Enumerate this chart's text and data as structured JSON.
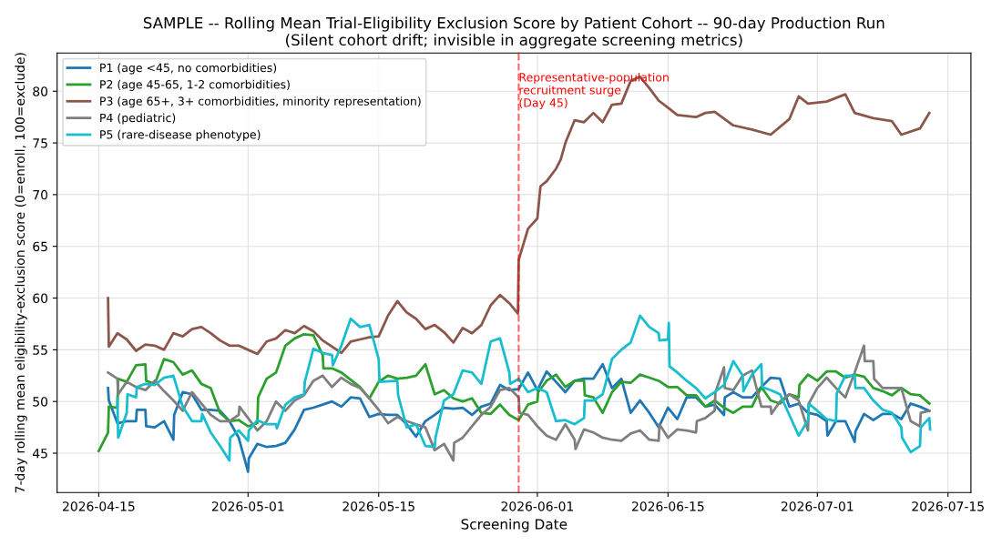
{
  "chart_data": {
    "type": "line",
    "title": "SAMPLE -- Rolling Mean Trial-Eligibility Exclusion Score by Patient Cohort -- 90-day Production Run",
    "subtitle": "(Silent cohort drift; invisible in aggregate screening metrics)",
    "xlabel": "Screening Date",
    "ylabel": "7-day rolling mean eligibility-exclusion score (0=enroll, 100=exclude)",
    "xlim": [
      "2026-04-10T13:00",
      "2026-07-17T11:00"
    ],
    "xticks": [
      "2026-04-15",
      "2026-05-01",
      "2026-05-15",
      "2026-06-01",
      "2026-06-15",
      "2026-07-01",
      "2026-07-15"
    ],
    "ylim": [
      41.2,
      83.7
    ],
    "yticks": [
      45,
      50,
      55,
      60,
      65,
      70,
      75,
      80
    ],
    "grid": true,
    "legend": "top left",
    "marker": "none",
    "line_style": "solid",
    "ref_lines": [
      {
        "axis": "x",
        "value": "2026-05-30",
        "label": "Representative-population\nrecruitment surge\n(Day 45)",
        "color": "#ff0000",
        "line_style": "dashed"
      }
    ],
    "series": [
      {
        "name": "P1 (age <45, no comorbidities)",
        "color": "#1f77b4",
        "x": [
          "2026-04-16",
          "2026-04-16T02:00",
          "2026-04-17",
          "2026-04-18",
          "2026-04-19",
          "2026-04-19T02:00",
          "2026-04-20",
          "2026-04-20T02:00",
          "2026-04-21",
          "2026-04-22",
          "2026-04-23",
          "2026-04-23T02:00",
          "2026-04-24",
          "2026-04-25",
          "2026-04-26",
          "2026-04-27",
          "2026-04-28",
          "2026-04-29",
          "2026-04-30",
          "2026-05-01",
          "2026-05-01T02:00",
          "2026-05-02",
          "2026-05-03",
          "2026-05-04",
          "2026-05-05",
          "2026-05-06",
          "2026-05-07",
          "2026-05-08",
          "2026-05-09",
          "2026-05-10",
          "2026-05-11",
          "2026-05-12",
          "2026-05-13",
          "2026-05-14",
          "2026-05-15",
          "2026-05-16",
          "2026-05-17",
          "2026-05-18",
          "2026-05-19",
          "2026-05-20",
          "2026-05-21",
          "2026-05-22",
          "2026-05-23",
          "2026-05-24",
          "2026-05-25",
          "2026-05-26",
          "2026-05-27",
          "2026-05-28",
          "2026-05-29",
          "2026-05-30",
          "2026-05-31",
          "2026-06-01",
          "2026-06-02",
          "2026-06-03",
          "2026-06-04",
          "2026-06-05",
          "2026-06-06",
          "2026-06-07",
          "2026-06-08",
          "2026-06-09",
          "2026-06-10",
          "2026-06-11",
          "2026-06-12",
          "2026-06-13",
          "2026-06-14",
          "2026-06-15",
          "2026-06-16",
          "2026-06-17",
          "2026-06-18",
          "2026-06-19",
          "2026-06-20",
          "2026-06-21",
          "2026-06-21T02:00",
          "2026-06-22",
          "2026-06-23",
          "2026-06-24",
          "2026-06-25",
          "2026-06-26",
          "2026-06-27",
          "2026-06-28",
          "2026-06-29",
          "2026-06-30",
          "2026-07-01",
          "2026-07-02",
          "2026-07-02T02:00",
          "2026-07-03",
          "2026-07-04",
          "2026-07-05",
          "2026-07-05T02:00",
          "2026-07-06",
          "2026-07-07",
          "2026-07-08",
          "2026-07-09",
          "2026-07-10",
          "2026-07-11",
          "2026-07-12",
          "2026-07-13"
        ],
        "values": [
          51.3,
          50.1,
          47.9,
          48.1,
          48.1,
          49.2,
          49.2,
          47.6,
          47.5,
          48.1,
          46.3,
          48.7,
          50.9,
          50.7,
          49.2,
          49.2,
          49.1,
          48.1,
          46.5,
          43.2,
          44.5,
          45.9,
          45.6,
          45.7,
          46.0,
          47.3,
          49.2,
          49.4,
          49.7,
          50.0,
          49.5,
          50.4,
          50.3,
          48.5,
          48.8,
          48.7,
          48.7,
          47.8,
          46.6,
          48.1,
          48.7,
          49.4,
          49.3,
          49.4,
          48.7,
          49.5,
          49.8,
          51.6,
          51.1,
          51.2,
          52.8,
          51.1,
          52.9,
          51.9,
          50.9,
          52.0,
          52.2,
          52.2,
          53.6,
          51.3,
          52.2,
          48.9,
          50.1,
          48.9,
          47.5,
          49.4,
          48.3,
          50.4,
          50.4,
          49.5,
          49.7,
          48.7,
          50.4,
          50.9,
          50.4,
          50.4,
          51.4,
          52.3,
          52.2,
          49.5,
          49.8,
          48.9,
          48.7,
          48.1,
          46.7,
          48.1,
          48.1,
          46.1,
          47.1,
          48.8,
          48.2,
          48.8,
          48.8,
          48.3,
          49.8,
          49.5,
          49.1
        ]
      },
      {
        "name": "P2 (age 45-65, 1-2 comorbidities)",
        "color": "#2ca02c",
        "x": [
          "2026-04-15",
          "2026-04-16",
          "2026-04-16T02:00",
          "2026-04-17",
          "2026-04-17T02:00",
          "2026-04-18",
          "2026-04-19",
          "2026-04-20",
          "2026-04-20T02:00",
          "2026-04-21",
          "2026-04-22",
          "2026-04-23",
          "2026-04-24",
          "2026-04-25",
          "2026-04-26",
          "2026-04-27",
          "2026-04-28",
          "2026-04-29",
          "2026-04-30",
          "2026-05-01",
          "2026-05-02",
          "2026-05-02T02:00",
          "2026-05-03",
          "2026-05-04",
          "2026-05-05",
          "2026-05-06",
          "2026-05-07",
          "2026-05-08",
          "2026-05-09",
          "2026-05-09T02:00",
          "2026-05-10",
          "2026-05-11",
          "2026-05-13",
          "2026-05-14",
          "2026-05-15",
          "2026-05-16",
          "2026-05-17",
          "2026-05-18",
          "2026-05-19",
          "2026-05-20",
          "2026-05-21",
          "2026-05-22",
          "2026-05-23",
          "2026-05-24",
          "2026-05-25",
          "2026-05-26",
          "2026-05-27",
          "2026-05-28",
          "2026-05-29",
          "2026-05-30",
          "2026-05-31",
          "2026-06-01",
          "2026-06-01T02:00",
          "2026-06-02",
          "2026-06-03",
          "2026-06-04",
          "2026-06-05",
          "2026-06-06",
          "2026-06-06T02:00",
          "2026-06-07",
          "2026-06-08",
          "2026-06-09",
          "2026-06-10",
          "2026-06-11",
          "2026-06-12",
          "2026-06-13",
          "2026-06-14",
          "2026-06-15",
          "2026-06-16",
          "2026-06-17",
          "2026-06-18",
          "2026-06-19",
          "2026-06-20",
          "2026-06-21",
          "2026-06-22",
          "2026-06-23",
          "2026-06-24",
          "2026-06-25",
          "2026-06-26",
          "2026-06-27",
          "2026-06-28",
          "2026-06-29",
          "2026-06-29T02:00",
          "2026-06-30",
          "2026-07-01",
          "2026-07-02",
          "2026-07-03",
          "2026-07-04",
          "2026-07-05",
          "2026-07-06",
          "2026-07-07",
          "2026-07-08",
          "2026-07-09",
          "2026-07-10",
          "2026-07-11",
          "2026-07-12",
          "2026-07-13"
        ],
        "values": [
          45.2,
          47.0,
          49.5,
          49.4,
          52.2,
          51.9,
          53.5,
          53.6,
          52.0,
          51.7,
          54.1,
          53.8,
          52.6,
          53.0,
          51.7,
          51.3,
          48.9,
          48.1,
          48.2,
          47.6,
          47.9,
          50.4,
          52.2,
          52.8,
          55.4,
          56.1,
          56.5,
          56.4,
          54.5,
          53.2,
          53.2,
          52.8,
          51.4,
          50.3,
          51.9,
          52.5,
          52.2,
          52.3,
          52.5,
          53.6,
          50.7,
          51.1,
          50.3,
          50.0,
          50.3,
          48.9,
          48.8,
          49.7,
          48.7,
          48.2,
          49.7,
          50.0,
          50.9,
          52.0,
          52.6,
          51.4,
          52.0,
          52.0,
          50.6,
          50.4,
          48.9,
          50.9,
          51.9,
          51.8,
          52.6,
          52.3,
          52.0,
          51.4,
          51.4,
          50.6,
          50.6,
          49.5,
          50.1,
          49.4,
          48.9,
          49.5,
          49.5,
          51.4,
          50.1,
          49.8,
          50.7,
          50.4,
          51.6,
          52.6,
          52.0,
          52.9,
          52.9,
          52.3,
          52.6,
          52.4,
          51.3,
          51.0,
          50.6,
          51.3,
          50.7,
          50.6,
          49.8
        ]
      },
      {
        "name": "P3 (age 65+, 3+ comorbidities, minority representation)",
        "color": "#8c564b",
        "x": [
          "2026-04-16",
          "2026-04-16T02:00",
          "2026-04-17",
          "2026-04-18",
          "2026-04-19",
          "2026-04-20",
          "2026-04-21",
          "2026-04-22",
          "2026-04-23",
          "2026-04-24",
          "2026-04-25",
          "2026-04-26",
          "2026-04-27",
          "2026-04-28",
          "2026-04-29",
          "2026-04-30",
          "2026-05-01",
          "2026-05-02",
          "2026-05-03",
          "2026-05-04",
          "2026-05-05",
          "2026-05-06",
          "2026-05-07",
          "2026-05-08",
          "2026-05-09",
          "2026-05-10",
          "2026-05-11",
          "2026-05-12",
          "2026-05-13",
          "2026-05-14",
          "2026-05-15",
          "2026-05-16",
          "2026-05-17",
          "2026-05-18",
          "2026-05-19",
          "2026-05-20",
          "2026-05-21",
          "2026-05-22",
          "2026-05-23",
          "2026-05-24",
          "2026-05-25",
          "2026-05-26",
          "2026-05-27",
          "2026-05-28",
          "2026-05-29",
          "2026-05-29T22:00",
          "2026-05-30",
          "2026-05-31",
          "2026-06-01",
          "2026-06-01T08:00",
          "2026-06-02",
          "2026-06-03",
          "2026-06-03T12:00",
          "2026-06-04",
          "2026-06-05",
          "2026-06-06",
          "2026-06-07",
          "2026-06-08",
          "2026-06-09",
          "2026-06-10",
          "2026-06-11",
          "2026-06-12",
          "2026-06-13",
          "2026-06-14",
          "2026-06-15",
          "2026-06-16",
          "2026-06-18",
          "2026-06-19",
          "2026-06-20",
          "2026-06-22",
          "2026-06-24",
          "2026-06-26",
          "2026-06-28",
          "2026-06-29",
          "2026-06-30",
          "2026-07-02",
          "2026-07-04",
          "2026-07-05",
          "2026-07-07",
          "2026-07-09",
          "2026-07-10",
          "2026-07-12",
          "2026-07-13"
        ],
        "values": [
          60.0,
          55.3,
          56.6,
          56.0,
          54.9,
          55.5,
          55.4,
          55.0,
          56.6,
          56.3,
          57.0,
          57.2,
          56.6,
          55.9,
          55.4,
          55.4,
          55.0,
          54.6,
          55.8,
          56.1,
          56.9,
          56.6,
          57.3,
          56.8,
          55.9,
          55.3,
          54.7,
          55.8,
          56.0,
          56.2,
          56.3,
          58.3,
          59.7,
          58.6,
          58.0,
          57.0,
          57.4,
          56.7,
          55.7,
          57.1,
          56.6,
          57.4,
          59.3,
          60.3,
          59.5,
          58.5,
          63.7,
          66.7,
          67.7,
          70.8,
          71.3,
          72.5,
          73.4,
          75.0,
          77.2,
          77.0,
          77.9,
          77.0,
          78.7,
          78.8,
          81.0,
          81.4,
          80.3,
          79.1,
          78.4,
          77.7,
          77.5,
          77.9,
          78.0,
          76.7,
          76.3,
          75.8,
          77.3,
          79.5,
          78.8,
          79.0,
          79.7,
          77.9,
          77.4,
          77.1,
          75.8,
          76.4,
          77.9
        ]
      },
      {
        "name": "P4 (pediatric)",
        "color": "#7f7f7f",
        "x": [
          "2026-04-16",
          "2026-04-17",
          "2026-04-17T02:00",
          "2026-04-18",
          "2026-04-19",
          "2026-04-20",
          "2026-04-21",
          "2026-04-22",
          "2026-04-23",
          "2026-04-24",
          "2026-04-25",
          "2026-04-26",
          "2026-04-27",
          "2026-04-28",
          "2026-04-29",
          "2026-04-30",
          "2026-04-30T02:00",
          "2026-05-01",
          "2026-05-02",
          "2026-05-03",
          "2026-05-04",
          "2026-05-05",
          "2026-05-06",
          "2026-05-07",
          "2026-05-08",
          "2026-05-09",
          "2026-05-10",
          "2026-05-11",
          "2026-05-12",
          "2026-05-13",
          "2026-05-14",
          "2026-05-15",
          "2026-05-16",
          "2026-05-17",
          "2026-05-18",
          "2026-05-19",
          "2026-05-20",
          "2026-05-21",
          "2026-05-22",
          "2026-05-23",
          "2026-05-23T02:00",
          "2026-05-24",
          "2026-05-25",
          "2026-05-26",
          "2026-05-27",
          "2026-05-28",
          "2026-05-29",
          "2026-05-30",
          "2026-05-30T02:00",
          "2026-05-31",
          "2026-06-01",
          "2026-06-02",
          "2026-06-03",
          "2026-06-04",
          "2026-06-05",
          "2026-06-05T02:00",
          "2026-06-06",
          "2026-06-07",
          "2026-06-08",
          "2026-06-09",
          "2026-06-10",
          "2026-06-11",
          "2026-06-12",
          "2026-06-13",
          "2026-06-14",
          "2026-06-14T02:00",
          "2026-06-15",
          "2026-06-16",
          "2026-06-17",
          "2026-06-18",
          "2026-06-18T02:00",
          "2026-06-19",
          "2026-06-20",
          "2026-06-20T02:00",
          "2026-06-21",
          "2026-06-21T02:00",
          "2026-06-22",
          "2026-06-23",
          "2026-06-24",
          "2026-06-25",
          "2026-06-26",
          "2026-06-26T02:00",
          "2026-06-27",
          "2026-06-28",
          "2026-06-29",
          "2026-06-30",
          "2026-06-30T02:00",
          "2026-07-01",
          "2026-07-02",
          "2026-07-03",
          "2026-07-04",
          "2026-07-05",
          "2026-07-06",
          "2026-07-06T02:00",
          "2026-07-07",
          "2026-07-07T02:00",
          "2026-07-08",
          "2026-07-09",
          "2026-07-10",
          "2026-07-11",
          "2026-07-12",
          "2026-07-12T02:00",
          "2026-07-13"
        ],
        "values": [
          52.8,
          52.2,
          50.7,
          51.9,
          51.4,
          51.1,
          52.0,
          51.0,
          50.1,
          49.1,
          50.9,
          49.8,
          48.7,
          48.1,
          48.1,
          48.7,
          49.5,
          48.4,
          47.2,
          48.1,
          50.0,
          49.1,
          50.1,
          50.6,
          52.0,
          52.5,
          51.4,
          52.3,
          51.7,
          51.3,
          50.3,
          49.2,
          47.9,
          48.5,
          48.1,
          47.8,
          47.5,
          45.3,
          45.9,
          44.3,
          46.0,
          46.5,
          47.6,
          48.7,
          49.5,
          51.1,
          51.3,
          50.4,
          48.9,
          48.7,
          47.6,
          46.7,
          46.3,
          47.8,
          46.3,
          45.4,
          47.3,
          47.0,
          46.5,
          46.3,
          46.2,
          46.9,
          47.2,
          46.3,
          46.2,
          47.8,
          46.5,
          47.3,
          47.2,
          47.0,
          48.1,
          48.4,
          49.1,
          50.9,
          53.3,
          51.3,
          51.1,
          52.5,
          53.0,
          49.5,
          49.5,
          48.8,
          50.0,
          50.7,
          50.1,
          47.2,
          49.8,
          51.3,
          52.3,
          51.3,
          50.4,
          52.8,
          55.4,
          53.9,
          53.9,
          52.2,
          51.3,
          51.3,
          51.3,
          48.1,
          47.6,
          48.9,
          49.1
        ]
      },
      {
        "name": "P5 (rare-disease phenotype)",
        "color": "#17becf",
        "x": [
          "2026-04-17",
          "2026-04-17T02:00",
          "2026-04-18",
          "2026-04-18T02:00",
          "2026-04-19",
          "2026-04-19T02:00",
          "2026-04-20",
          "2026-04-21",
          "2026-04-22",
          "2026-04-23",
          "2026-04-24",
          "2026-04-25",
          "2026-04-26",
          "2026-04-26T02:00",
          "2026-04-27",
          "2026-04-28",
          "2026-04-29",
          "2026-04-29T02:00",
          "2026-04-30",
          "2026-05-01",
          "2026-05-01T02:00",
          "2026-05-02",
          "2026-05-03",
          "2026-05-04",
          "2026-05-04T02:00",
          "2026-05-05",
          "2026-05-06",
          "2026-05-07",
          "2026-05-07T02:00",
          "2026-05-08",
          "2026-05-09",
          "2026-05-10",
          "2026-05-10T02:00",
          "2026-05-11",
          "2026-05-12",
          "2026-05-13",
          "2026-05-14",
          "2026-05-15",
          "2026-05-15T02:00",
          "2026-05-17",
          "2026-05-17T02:00",
          "2026-05-18",
          "2026-05-19",
          "2026-05-20",
          "2026-05-21",
          "2026-05-21T02:00",
          "2026-05-22",
          "2026-05-23",
          "2026-05-24",
          "2026-05-25",
          "2026-05-26",
          "2026-05-27",
          "2026-05-28",
          "2026-05-29",
          "2026-05-29T02:00",
          "2026-05-30",
          "2026-05-31",
          "2026-06-01",
          "2026-06-02",
          "2026-06-03",
          "2026-06-04",
          "2026-06-05",
          "2026-06-06",
          "2026-06-06T02:00",
          "2026-06-07",
          "2026-06-08",
          "2026-06-09",
          "2026-06-10",
          "2026-06-11",
          "2026-06-12",
          "2026-06-13",
          "2026-06-14",
          "2026-06-14T02:00",
          "2026-06-15",
          "2026-06-15T02:00",
          "2026-06-15T04:00",
          "2026-06-16",
          "2026-06-17",
          "2026-06-18",
          "2026-06-19",
          "2026-06-20",
          "2026-06-21",
          "2026-06-22",
          "2026-06-23",
          "2026-06-23T02:00",
          "2026-06-24",
          "2026-06-25",
          "2026-06-25T02:00",
          "2026-06-26",
          "2026-06-27",
          "2026-06-28",
          "2026-06-29",
          "2026-06-30",
          "2026-06-30T02:00",
          "2026-07-01",
          "2026-07-02",
          "2026-07-03",
          "2026-07-03T02:00",
          "2026-07-04",
          "2026-07-05",
          "2026-07-05T02:00",
          "2026-07-06",
          "2026-07-07",
          "2026-07-08",
          "2026-07-09",
          "2026-07-10",
          "2026-07-10T02:00",
          "2026-07-11",
          "2026-07-12",
          "2026-07-12T02:00",
          "2026-07-13",
          "2026-07-13T02:00"
        ],
        "values": [
          50.3,
          46.5,
          48.9,
          50.7,
          50.4,
          51.4,
          51.7,
          51.6,
          52.3,
          52.5,
          49.5,
          48.1,
          48.1,
          48.8,
          47.0,
          45.7,
          44.3,
          46.5,
          47.2,
          46.2,
          47.2,
          48.2,
          47.8,
          47.8,
          47.4,
          49.7,
          50.4,
          50.7,
          51.9,
          55.1,
          54.7,
          54.5,
          53.5,
          55.4,
          58.0,
          57.2,
          57.4,
          54.1,
          51.9,
          52.0,
          50.6,
          47.5,
          47.8,
          45.7,
          45.6,
          46.5,
          50.1,
          50.7,
          53.0,
          52.8,
          51.7,
          55.8,
          56.1,
          52.8,
          51.7,
          52.2,
          50.9,
          51.3,
          50.9,
          48.1,
          48.2,
          47.8,
          48.4,
          50.1,
          50.1,
          50.7,
          54.1,
          55.0,
          55.7,
          58.3,
          57.2,
          56.6,
          55.9,
          56.0,
          57.6,
          53.4,
          52.8,
          52.0,
          51.3,
          50.3,
          50.9,
          51.6,
          53.9,
          52.5,
          51.0,
          52.6,
          53.6,
          51.4,
          51.1,
          50.7,
          48.7,
          46.7,
          48.2,
          49.8,
          49.1,
          48.3,
          48.1,
          50.8,
          52.5,
          52.5,
          51.3,
          51.3,
          50.1,
          49.2,
          48.9,
          47.5,
          46.5,
          45.1,
          45.7,
          47.5,
          48.4,
          47.3
        ]
      }
    ]
  }
}
